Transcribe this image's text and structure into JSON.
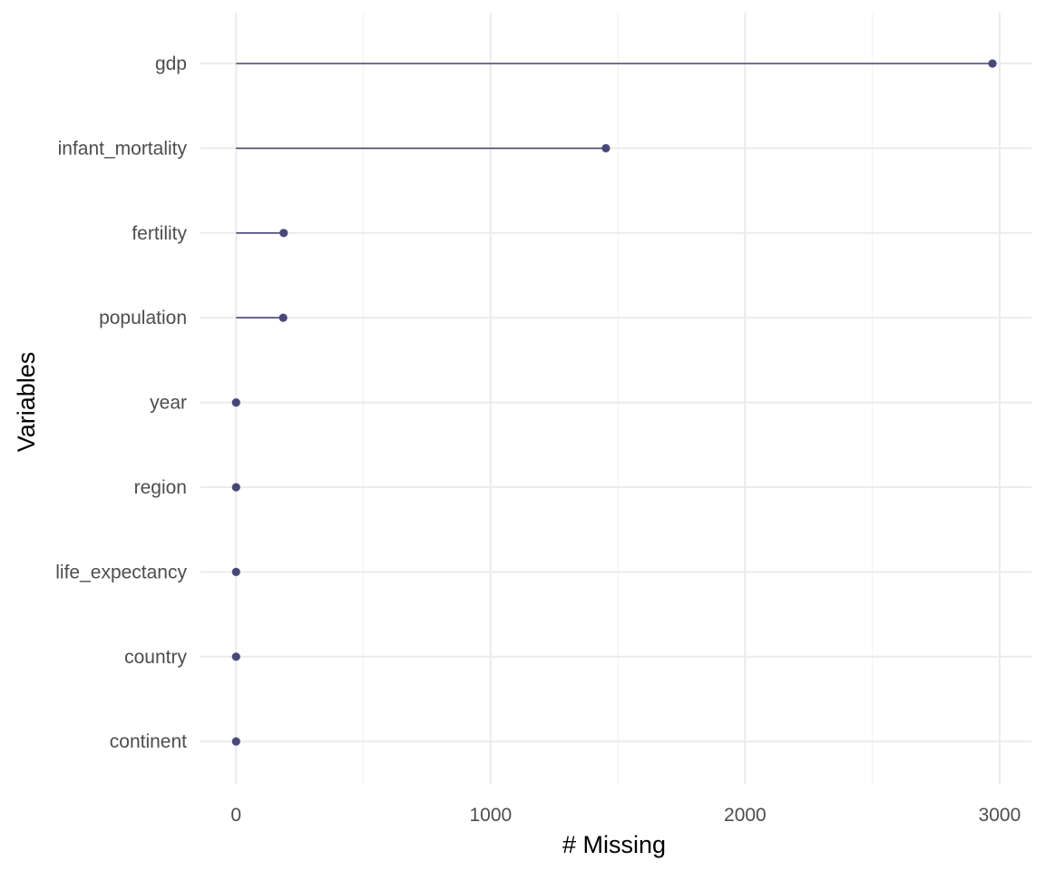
{
  "chart_data": {
    "type": "lollipop",
    "orientation": "horizontal",
    "xlabel": "# Missing",
    "ylabel": "Variables",
    "xlim": [
      -140,
      3125
    ],
    "x_ticks": [
      0,
      1000,
      2000,
      3000
    ],
    "x_tick_labels": [
      "0",
      "1000",
      "2000",
      "3000"
    ],
    "grid": true,
    "categories": [
      "gdp",
      "infant_mortality",
      "fertility",
      "population",
      "year",
      "region",
      "life_expectancy",
      "country",
      "continent"
    ],
    "values": [
      2972,
      1453,
      187,
      185,
      0,
      0,
      0,
      0,
      0
    ],
    "colors": {
      "mark": "#484878",
      "grid_major": "#ebebeb",
      "grid_minor": "#f3f3f3"
    }
  }
}
